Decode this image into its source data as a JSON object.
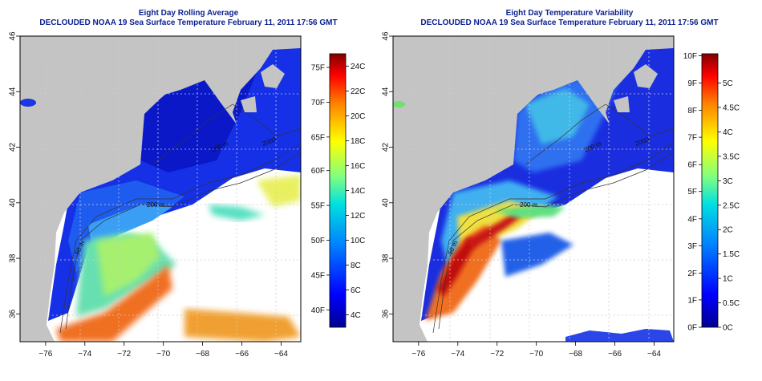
{
  "colors": {
    "land": "#c4c4c4",
    "missing": "#ffffff",
    "title": "#0a1f8f",
    "contour": "#333333"
  },
  "left_panel": {
    "title_line1": "Eight Day Rolling Average",
    "title_line2": "DECLOUDED NOAA 19 Sea Surface Temperature February 11, 2011 17:56 GMT",
    "x_ticks": [
      "-76",
      "-74",
      "-72",
      "-70",
      "-68",
      "-66",
      "-64"
    ],
    "y_ticks": [
      "36",
      "38",
      "40",
      "42",
      "44",
      "46"
    ],
    "contour_labels": [
      "200 m",
      "2000",
      "200 m",
      "50 m"
    ],
    "colorbar": {
      "range_c": [
        3,
        25
      ],
      "left_labels": [
        "75F",
        "70F",
        "65F",
        "60F",
        "55F",
        "50F",
        "45F",
        "40F"
      ],
      "left_values_c": [
        23.9,
        21.1,
        18.3,
        15.6,
        12.8,
        10.0,
        7.2,
        4.4
      ],
      "right_labels": [
        "24C",
        "22C",
        "20C",
        "18C",
        "16C",
        "14C",
        "12C",
        "10C",
        "8C",
        "6C",
        "4C"
      ],
      "right_values_c": [
        24,
        22,
        20,
        18,
        16,
        14,
        12,
        10,
        8,
        6,
        4
      ]
    }
  },
  "right_panel": {
    "title_line1": "Eight Day Temperature Variability",
    "title_line2": "DECLOUDED NOAA 19 Sea Surface Temperature February 11, 2011 17:56 GMT",
    "x_ticks": [
      "-76",
      "-74",
      "-72",
      "-70",
      "-68",
      "-66",
      "-64"
    ],
    "y_ticks": [
      "36",
      "38",
      "40",
      "42",
      "44",
      "46"
    ],
    "contour_labels": [
      "200 m",
      "2000",
      "200 m",
      "50 m"
    ],
    "colorbar": {
      "range_c": [
        0,
        5.6
      ],
      "left_labels": [
        "10F",
        "9F",
        "8F",
        "7F",
        "6F",
        "5F",
        "4F",
        "3F",
        "2F",
        "1F",
        "0F"
      ],
      "left_values_c": [
        5.56,
        5.0,
        4.44,
        3.89,
        3.33,
        2.78,
        2.22,
        1.67,
        1.11,
        0.56,
        0
      ],
      "right_labels": [
        "5C",
        "4.5C",
        "4C",
        "3.5C",
        "3C",
        "2.5C",
        "2C",
        "1.5C",
        "1C",
        "0.5C",
        "0C"
      ],
      "right_values_c": [
        5,
        4.5,
        4,
        3.5,
        3,
        2.5,
        2,
        1.5,
        1,
        0.5,
        0
      ]
    }
  }
}
